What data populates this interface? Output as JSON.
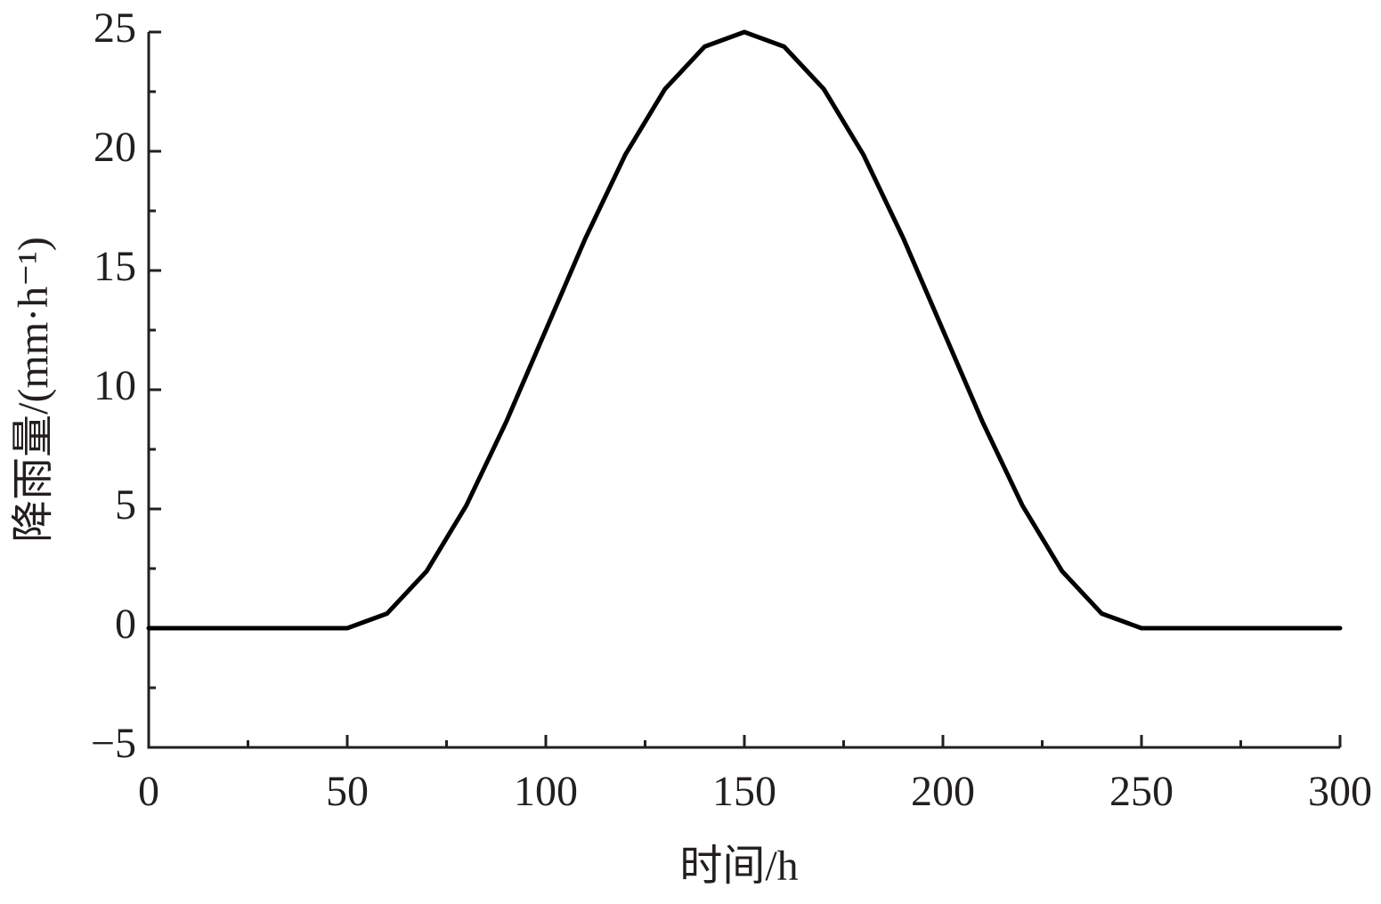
{
  "chart_data": {
    "type": "line",
    "x_label": "时间/h",
    "y_label": "降雨量/(mm·h⁻¹)",
    "x": [
      0,
      10,
      20,
      30,
      40,
      50,
      60,
      70,
      80,
      90,
      100,
      110,
      120,
      130,
      140,
      150,
      160,
      170,
      180,
      190,
      200,
      210,
      220,
      230,
      240,
      250,
      260,
      270,
      280,
      290,
      300
    ],
    "values": [
      0,
      0,
      0,
      0,
      0,
      0,
      0.61,
      2.39,
      5.15,
      8.64,
      12.5,
      16.36,
      19.85,
      22.61,
      24.39,
      25,
      24.39,
      22.61,
      19.85,
      16.36,
      12.5,
      8.64,
      5.15,
      2.39,
      0.61,
      0,
      0,
      0,
      0,
      0,
      0
    ],
    "color": "#000000",
    "xlim": [
      0,
      300
    ],
    "ylim": [
      -5,
      25
    ],
    "xticks": [
      0,
      50,
      100,
      150,
      200,
      250,
      300
    ],
    "yticks": [
      {
        "value": -5,
        "label": "−5"
      },
      0,
      5,
      10,
      15,
      20,
      25
    ],
    "xminorticks": [
      25,
      75,
      125,
      175,
      225,
      275
    ],
    "yminorticks": [
      -2.5,
      2.5,
      7.5,
      12.5,
      17.5,
      22.5
    ],
    "grid": false
  }
}
